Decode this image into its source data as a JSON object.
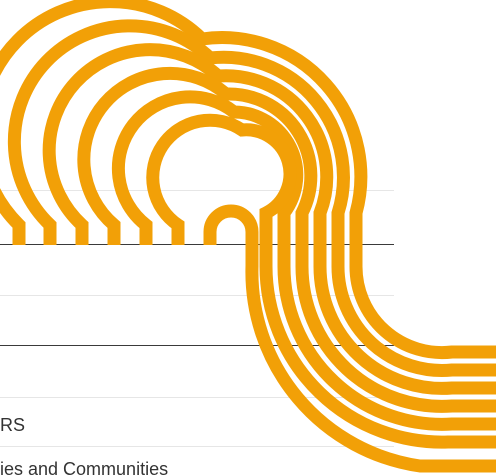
{
  "lines": {
    "item_1": "RS",
    "item_2": "ies and Communities"
  },
  "colors": {
    "accent": "#F2A007",
    "rule_light": "#e6e6e6",
    "rule_dark": "#3a3a3a",
    "text": "#333333"
  },
  "decoration": {
    "icon": "concentric-arc-stripes-graphic"
  }
}
